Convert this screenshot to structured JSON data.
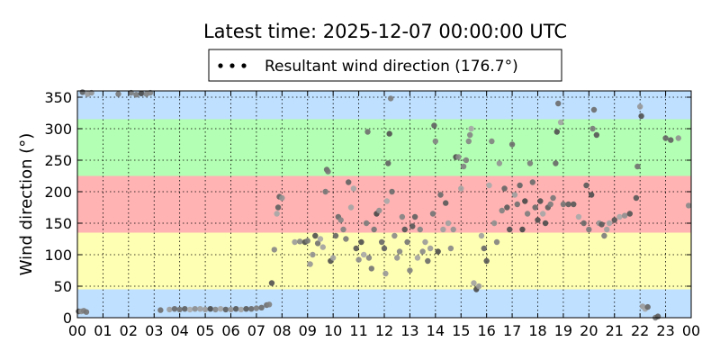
{
  "chart_data": {
    "type": "scatter",
    "title": "Latest time: 2025-12-07 00:00:00 UTC",
    "xlabel": "",
    "ylabel": "Wind direction (°)",
    "xlim": [
      0,
      24
    ],
    "ylim": [
      0,
      360
    ],
    "x_ticks": [
      "00",
      "01",
      "02",
      "03",
      "04",
      "05",
      "06",
      "07",
      "08",
      "09",
      "10",
      "11",
      "12",
      "13",
      "14",
      "15",
      "16",
      "17",
      "18",
      "19",
      "20",
      "21",
      "22",
      "23",
      "00"
    ],
    "y_ticks": [
      0,
      50,
      100,
      150,
      200,
      250,
      300,
      350
    ],
    "grid": true,
    "legend_position": "top-center",
    "bands": [
      {
        "from": 0,
        "to": 45,
        "color": "#bfe0ff"
      },
      {
        "from": 45,
        "to": 135,
        "color": "#ffffb3"
      },
      {
        "from": 135,
        "to": 225,
        "color": "#ffb3b3"
      },
      {
        "from": 225,
        "to": 315,
        "color": "#b3ffb3"
      },
      {
        "from": 315,
        "to": 360,
        "color": "#bfe0ff"
      }
    ],
    "series": [
      {
        "name": "Resultant wind direction (176.7°)",
        "color": "#808080",
        "points": [
          [
            0.05,
            10
          ],
          [
            0.15,
            10
          ],
          [
            0.25,
            11
          ],
          [
            0.35,
            9
          ],
          [
            0.2,
            358
          ],
          [
            0.4,
            355
          ],
          [
            0.55,
            357
          ],
          [
            1.6,
            355
          ],
          [
            2.1,
            357
          ],
          [
            2.3,
            354
          ],
          [
            2.5,
            356
          ],
          [
            2.7,
            355
          ],
          [
            2.85,
            357
          ],
          [
            3.25,
            12
          ],
          [
            3.6,
            13
          ],
          [
            3.8,
            14
          ],
          [
            4.0,
            13
          ],
          [
            4.2,
            14
          ],
          [
            4.4,
            13
          ],
          [
            4.6,
            14
          ],
          [
            4.8,
            14
          ],
          [
            5.0,
            13
          ],
          [
            5.2,
            14
          ],
          [
            5.4,
            13
          ],
          [
            5.6,
            14
          ],
          [
            5.8,
            13
          ],
          [
            6.0,
            13
          ],
          [
            6.2,
            14
          ],
          [
            6.4,
            13
          ],
          [
            6.6,
            14
          ],
          [
            6.8,
            14
          ],
          [
            7.0,
            15
          ],
          [
            7.2,
            16
          ],
          [
            7.4,
            20
          ],
          [
            7.5,
            21
          ],
          [
            7.6,
            55
          ],
          [
            7.7,
            108
          ],
          [
            7.8,
            165
          ],
          [
            7.85,
            175
          ],
          [
            7.9,
            192
          ],
          [
            8.0,
            190
          ],
          [
            8.5,
            120
          ],
          [
            8.7,
            121
          ],
          [
            8.9,
            120
          ],
          [
            9.0,
            122
          ],
          [
            9.1,
            85
          ],
          [
            9.2,
            100
          ],
          [
            9.3,
            130
          ],
          [
            9.4,
            118
          ],
          [
            9.5,
            125
          ],
          [
            9.6,
            112
          ],
          [
            9.7,
            200
          ],
          [
            9.75,
            235
          ],
          [
            9.8,
            232
          ],
          [
            9.9,
            90
          ],
          [
            10.0,
            95
          ],
          [
            10.1,
            130
          ],
          [
            10.2,
            160
          ],
          [
            10.3,
            155
          ],
          [
            10.4,
            140
          ],
          [
            10.5,
            125
          ],
          [
            10.6,
            215
          ],
          [
            10.7,
            175
          ],
          [
            10.8,
            205
          ],
          [
            10.9,
            110
          ],
          [
            11.0,
            92
          ],
          [
            11.1,
            120
          ],
          [
            11.2,
            100
          ],
          [
            11.3,
            150
          ],
          [
            11.35,
            295
          ],
          [
            11.4,
            95
          ],
          [
            11.5,
            78
          ],
          [
            11.6,
            140
          ],
          [
            11.7,
            165
          ],
          [
            11.8,
            170
          ],
          [
            11.9,
            120
          ],
          [
            12.0,
            110
          ],
          [
            12.05,
            70
          ],
          [
            12.1,
            185
          ],
          [
            12.15,
            245
          ],
          [
            12.2,
            292
          ],
          [
            12.25,
            348
          ],
          [
            12.3,
            200
          ],
          [
            12.4,
            130
          ],
          [
            12.5,
            95
          ],
          [
            12.6,
            105
          ],
          [
            12.7,
            160
          ],
          [
            12.8,
            140
          ],
          [
            12.9,
            120
          ],
          [
            13.0,
            75
          ],
          [
            13.1,
            145
          ],
          [
            13.2,
            160
          ],
          [
            13.3,
            95
          ],
          [
            13.4,
            140
          ],
          [
            13.5,
            105
          ],
          [
            13.6,
            120
          ],
          [
            13.7,
            90
          ],
          [
            13.8,
            110
          ],
          [
            13.9,
            165
          ],
          [
            13.95,
            305
          ],
          [
            14.0,
            280
          ],
          [
            14.1,
            105
          ],
          [
            14.2,
            195
          ],
          [
            14.3,
            140
          ],
          [
            14.4,
            182
          ],
          [
            14.5,
            150
          ],
          [
            14.6,
            110
          ],
          [
            14.7,
            140
          ],
          [
            14.8,
            255
          ],
          [
            14.9,
            255
          ],
          [
            15.0,
            205
          ],
          [
            15.1,
            240
          ],
          [
            15.2,
            250
          ],
          [
            15.3,
            280
          ],
          [
            15.35,
            290
          ],
          [
            15.4,
            300
          ],
          [
            15.5,
            55
          ],
          [
            15.6,
            45
          ],
          [
            15.7,
            50
          ],
          [
            15.8,
            130
          ],
          [
            15.9,
            110
          ],
          [
            16.0,
            90
          ],
          [
            16.1,
            210
          ],
          [
            16.2,
            280
          ],
          [
            16.3,
            150
          ],
          [
            16.4,
            120
          ],
          [
            16.5,
            245
          ],
          [
            16.6,
            170
          ],
          [
            16.7,
            205
          ],
          [
            16.8,
            175
          ],
          [
            16.9,
            140
          ],
          [
            17.0,
            275
          ],
          [
            17.1,
            195
          ],
          [
            17.2,
            180
          ],
          [
            17.3,
            210
          ],
          [
            17.4,
            140
          ],
          [
            17.5,
            185
          ],
          [
            17.6,
            165
          ],
          [
            17.7,
            245
          ],
          [
            17.8,
            215
          ],
          [
            17.9,
            175
          ],
          [
            18.0,
            155
          ],
          [
            18.1,
            185
          ],
          [
            18.2,
            165
          ],
          [
            18.3,
            150
          ],
          [
            18.4,
            175
          ],
          [
            18.5,
            180
          ],
          [
            18.6,
            190
          ],
          [
            18.7,
            245
          ],
          [
            18.75,
            295
          ],
          [
            18.8,
            340
          ],
          [
            18.9,
            310
          ],
          [
            19.0,
            180
          ],
          [
            19.2,
            180
          ],
          [
            19.4,
            180
          ],
          [
            19.6,
            160
          ],
          [
            19.8,
            150
          ],
          [
            19.9,
            210
          ],
          [
            20.0,
            140
          ],
          [
            20.1,
            195
          ],
          [
            20.15,
            300
          ],
          [
            20.2,
            330
          ],
          [
            20.3,
            290
          ],
          [
            20.4,
            150
          ],
          [
            20.5,
            148
          ],
          [
            20.6,
            130
          ],
          [
            20.7,
            140
          ],
          [
            20.8,
            150
          ],
          [
            21.0,
            155
          ],
          [
            21.2,
            160
          ],
          [
            21.4,
            162
          ],
          [
            21.6,
            165
          ],
          [
            21.85,
            190
          ],
          [
            21.9,
            240
          ],
          [
            22.0,
            335
          ],
          [
            22.05,
            320
          ],
          [
            22.1,
            18
          ],
          [
            22.2,
            14
          ],
          [
            22.3,
            17
          ],
          [
            22.6,
            0
          ],
          [
            22.7,
            2
          ],
          [
            23.0,
            285
          ],
          [
            23.2,
            282
          ],
          [
            23.5,
            285
          ],
          [
            23.9,
            178
          ]
        ]
      }
    ]
  }
}
